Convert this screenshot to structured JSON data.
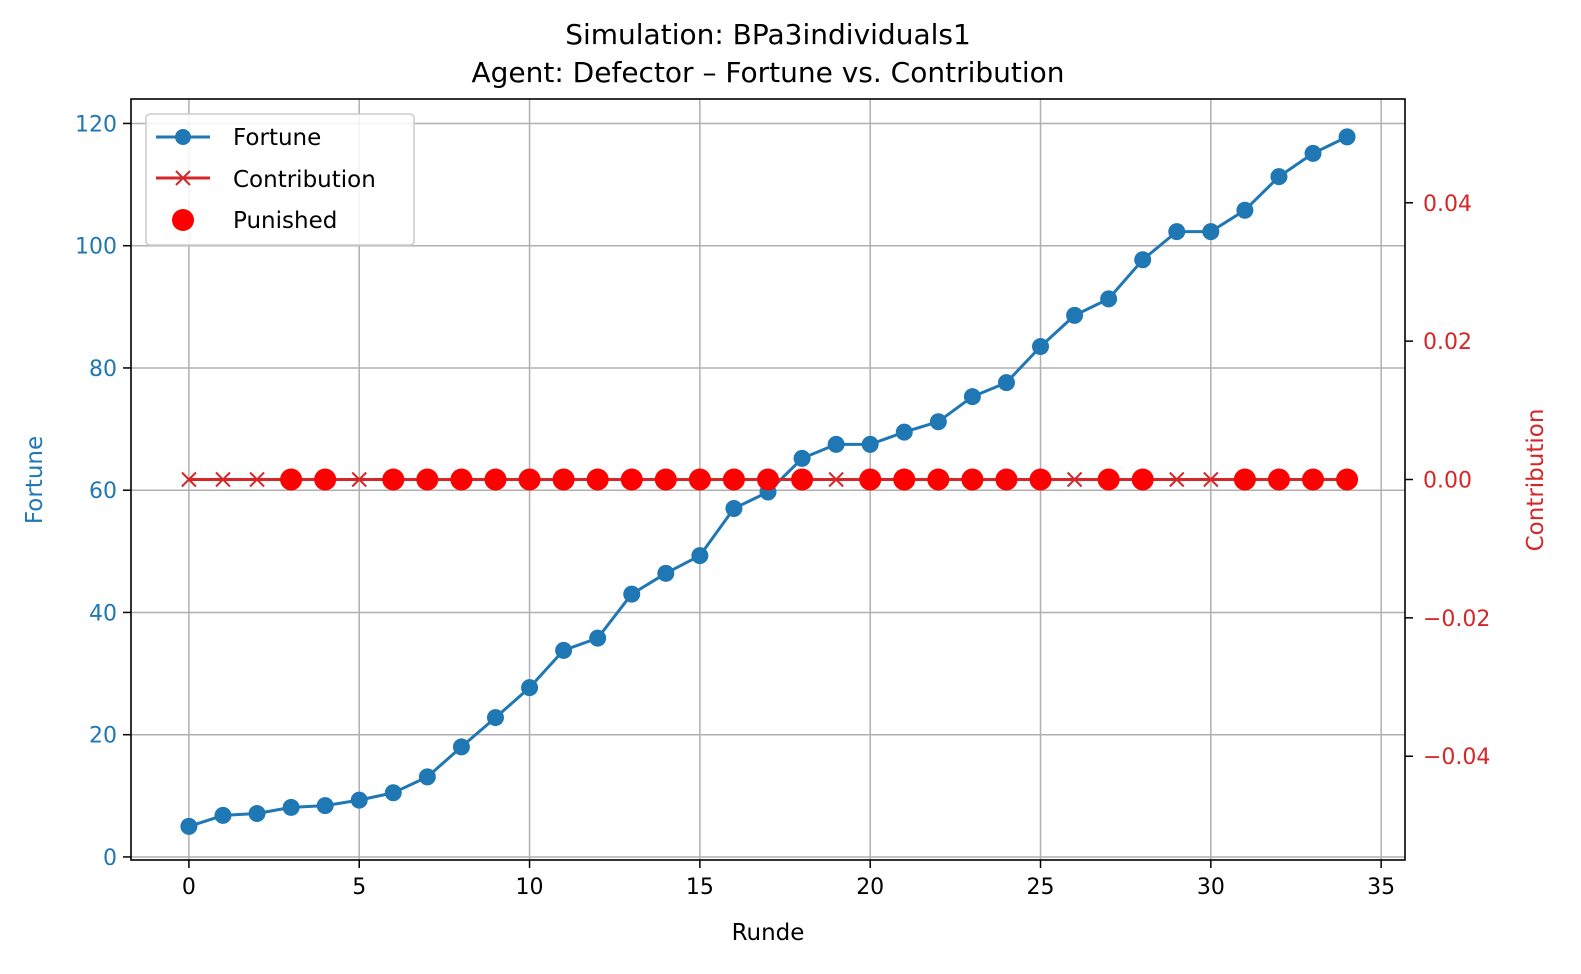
{
  "chart_data": {
    "type": "line",
    "title": "Simulation: BPa3individuals1",
    "subtitle": "Agent: Defector – Fortune vs. Contribution",
    "xlabel": "Runde",
    "ylabel_left": "Fortune",
    "ylabel_right": "Contribution",
    "xlim": [
      -1.7,
      35.7
    ],
    "ylim_left": [
      -0.5,
      124
    ],
    "ylim_right": [
      -0.055,
      0.055
    ],
    "x_ticks": [
      0,
      5,
      10,
      15,
      20,
      25,
      30,
      35
    ],
    "y_left_ticks": [
      0,
      20,
      40,
      60,
      80,
      100,
      120
    ],
    "y_right_ticks": [
      -0.04,
      -0.02,
      0.0,
      0.02,
      0.04
    ],
    "y_right_tick_labels": [
      "−0.04",
      "−0.02",
      "0.00",
      "0.02",
      "0.04"
    ],
    "grid": true,
    "legend_position": "top-left",
    "colors": {
      "fortune": "#1f77b4",
      "contribution": "#d62728",
      "punished": "#ff0000",
      "grid": "#b0b0b0"
    },
    "x": [
      0,
      1,
      2,
      3,
      4,
      5,
      6,
      7,
      8,
      9,
      10,
      11,
      12,
      13,
      14,
      15,
      16,
      17,
      18,
      19,
      20,
      21,
      22,
      23,
      24,
      25,
      26,
      27,
      28,
      29,
      30,
      31,
      32,
      33,
      34
    ],
    "series": [
      {
        "name": "Fortune",
        "axis": "left",
        "marker": "circle",
        "values": [
          5.0,
          6.8,
          7.1,
          8.1,
          8.4,
          9.3,
          10.5,
          13.1,
          18.0,
          22.8,
          27.7,
          33.8,
          35.8,
          43.0,
          46.4,
          49.3,
          57.0,
          59.7,
          65.2,
          67.5,
          67.5,
          69.5,
          71.2,
          75.3,
          77.6,
          83.5,
          88.6,
          91.3,
          97.7,
          102.3,
          102.3,
          105.8,
          111.3,
          115.1,
          117.8
        ]
      },
      {
        "name": "Contribution",
        "axis": "right",
        "marker": "x",
        "values": [
          0,
          0,
          0,
          0,
          0,
          0,
          0,
          0,
          0,
          0,
          0,
          0,
          0,
          0,
          0,
          0,
          0,
          0,
          0,
          0,
          0,
          0,
          0,
          0,
          0,
          0,
          0,
          0,
          0,
          0,
          0,
          0,
          0,
          0,
          0
        ]
      },
      {
        "name": "Punished",
        "axis": "right",
        "marker": "dot",
        "x": [
          3,
          4,
          6,
          7,
          8,
          9,
          10,
          11,
          12,
          13,
          14,
          15,
          16,
          17,
          18,
          20,
          21,
          22,
          23,
          24,
          25,
          27,
          28,
          31,
          32,
          33,
          34
        ],
        "values": [
          0,
          0,
          0,
          0,
          0,
          0,
          0,
          0,
          0,
          0,
          0,
          0,
          0,
          0,
          0,
          0,
          0,
          0,
          0,
          0,
          0,
          0,
          0,
          0,
          0,
          0,
          0
        ]
      }
    ]
  }
}
